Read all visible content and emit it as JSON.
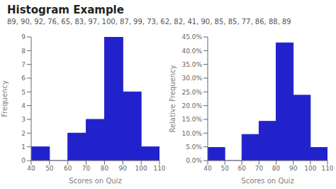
{
  "chart_data": [
    {
      "type": "histogram",
      "title": "Histogram Example",
      "subtitle": "89, 90, 92, 76, 65, 83, 97, 100, 87, 99, 73, 62, 82, 41, 90, 85, 85, 77, 86, 88, 89",
      "bins": [
        40,
        50,
        60,
        70,
        80,
        90,
        100,
        110
      ],
      "values": [
        1,
        0,
        2,
        3,
        9,
        5,
        1
      ],
      "color": "#2222cc",
      "xlabel": "Scores on Quiz",
      "ylabel": "Frequency",
      "xlim": [
        40,
        110
      ],
      "xticks": [
        40,
        50,
        60,
        70,
        80,
        90,
        100,
        110
      ],
      "ylim": [
        0,
        9
      ],
      "yticks": [
        0,
        1,
        2,
        3,
        4,
        5,
        6,
        7,
        8,
        9
      ],
      "grid": false
    },
    {
      "type": "histogram",
      "bins": [
        40,
        50,
        60,
        70,
        80,
        90,
        100,
        110
      ],
      "values": [
        0.047619047619047616,
        0,
        0.09523809523809523,
        0.14285714285714285,
        0.42857142857142855,
        0.23809523809523808,
        0.047619047619047616
      ],
      "color": "#2222cc",
      "xlabel": "Scores on Quiz",
      "ylabel": "Relative Frequency",
      "xlim": [
        40,
        110
      ],
      "xticks": [
        40,
        50,
        60,
        70,
        80,
        90,
        100,
        110
      ],
      "ylim": [
        0,
        0.45
      ],
      "yticks": [
        {
          "value": 0.0,
          "label": "0.0%"
        },
        {
          "value": 0.05,
          "label": "5.0%"
        },
        {
          "value": 0.1,
          "label": "10.0%"
        },
        {
          "value": 0.15,
          "label": "15.0%"
        },
        {
          "value": 0.2,
          "label": "20.0%"
        },
        {
          "value": 0.25,
          "label": "25.0%"
        },
        {
          "value": 0.3,
          "label": "30.0%"
        },
        {
          "value": 0.35,
          "label": "35.0%"
        },
        {
          "value": 0.4,
          "label": "40.0%"
        },
        {
          "value": 0.45,
          "label": "45.0%"
        }
      ],
      "grid": false
    }
  ]
}
